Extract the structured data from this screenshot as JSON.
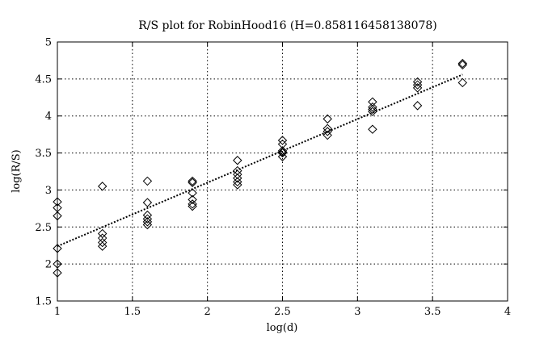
{
  "chart_data": {
    "type": "scatter",
    "title": "R/S plot for RobinHood16 (H=0.858116458138078)",
    "xlabel": "log(d)",
    "ylabel": "log(R/S)",
    "xlim": [
      1,
      4
    ],
    "ylim": [
      1.5,
      5
    ],
    "xticks": [
      1,
      1.5,
      2,
      2.5,
      3,
      3.5,
      4
    ],
    "xtick_labels": [
      "1",
      "1.5",
      "2",
      "2.5",
      "3",
      "3.5",
      "4"
    ],
    "yticks": [
      1.5,
      2,
      2.5,
      3,
      3.5,
      4,
      4.5,
      5
    ],
    "ytick_labels": [
      "1.5",
      "2",
      "2.5",
      "3",
      "3.5",
      "4",
      "4.5",
      "5"
    ],
    "grid": true,
    "marker": "diamond",
    "series": [
      {
        "points": [
          [
            1.0,
            2.84
          ],
          [
            1.0,
            2.76
          ],
          [
            1.0,
            2.65
          ],
          [
            1.0,
            2.21
          ],
          [
            1.0,
            2.0
          ],
          [
            1.0,
            1.88
          ],
          [
            1.3,
            3.05
          ],
          [
            1.3,
            2.41
          ],
          [
            1.3,
            2.35
          ],
          [
            1.3,
            2.29
          ],
          [
            1.3,
            2.24
          ],
          [
            1.6,
            3.12
          ],
          [
            1.6,
            2.83
          ],
          [
            1.6,
            2.66
          ],
          [
            1.6,
            2.61
          ],
          [
            1.6,
            2.57
          ],
          [
            1.6,
            2.53
          ],
          [
            1.9,
            3.12
          ],
          [
            1.9,
            3.1
          ],
          [
            1.9,
            2.96
          ],
          [
            1.9,
            2.87
          ],
          [
            1.9,
            2.81
          ],
          [
            1.9,
            2.78
          ],
          [
            2.2,
            3.4
          ],
          [
            2.2,
            3.26
          ],
          [
            2.2,
            3.21
          ],
          [
            2.2,
            3.16
          ],
          [
            2.2,
            3.11
          ],
          [
            2.2,
            3.07
          ],
          [
            2.5,
            3.67
          ],
          [
            2.5,
            3.62
          ],
          [
            2.5,
            3.53
          ],
          [
            2.5,
            3.51
          ],
          [
            2.5,
            3.5
          ],
          [
            2.5,
            3.45
          ],
          [
            2.8,
            3.96
          ],
          [
            2.8,
            3.83
          ],
          [
            2.8,
            3.79
          ],
          [
            2.8,
            3.74
          ],
          [
            3.1,
            4.19
          ],
          [
            3.1,
            4.12
          ],
          [
            3.1,
            4.09
          ],
          [
            3.1,
            4.06
          ],
          [
            3.1,
            3.82
          ],
          [
            3.4,
            4.46
          ],
          [
            3.4,
            4.42
          ],
          [
            3.4,
            4.38
          ],
          [
            3.4,
            4.14
          ],
          [
            3.7,
            4.71
          ],
          [
            3.7,
            4.69
          ],
          [
            3.7,
            4.45
          ]
        ]
      }
    ],
    "fit_line": {
      "x": [
        1.0,
        3.7
      ],
      "y": [
        2.24,
        4.56
      ]
    }
  }
}
